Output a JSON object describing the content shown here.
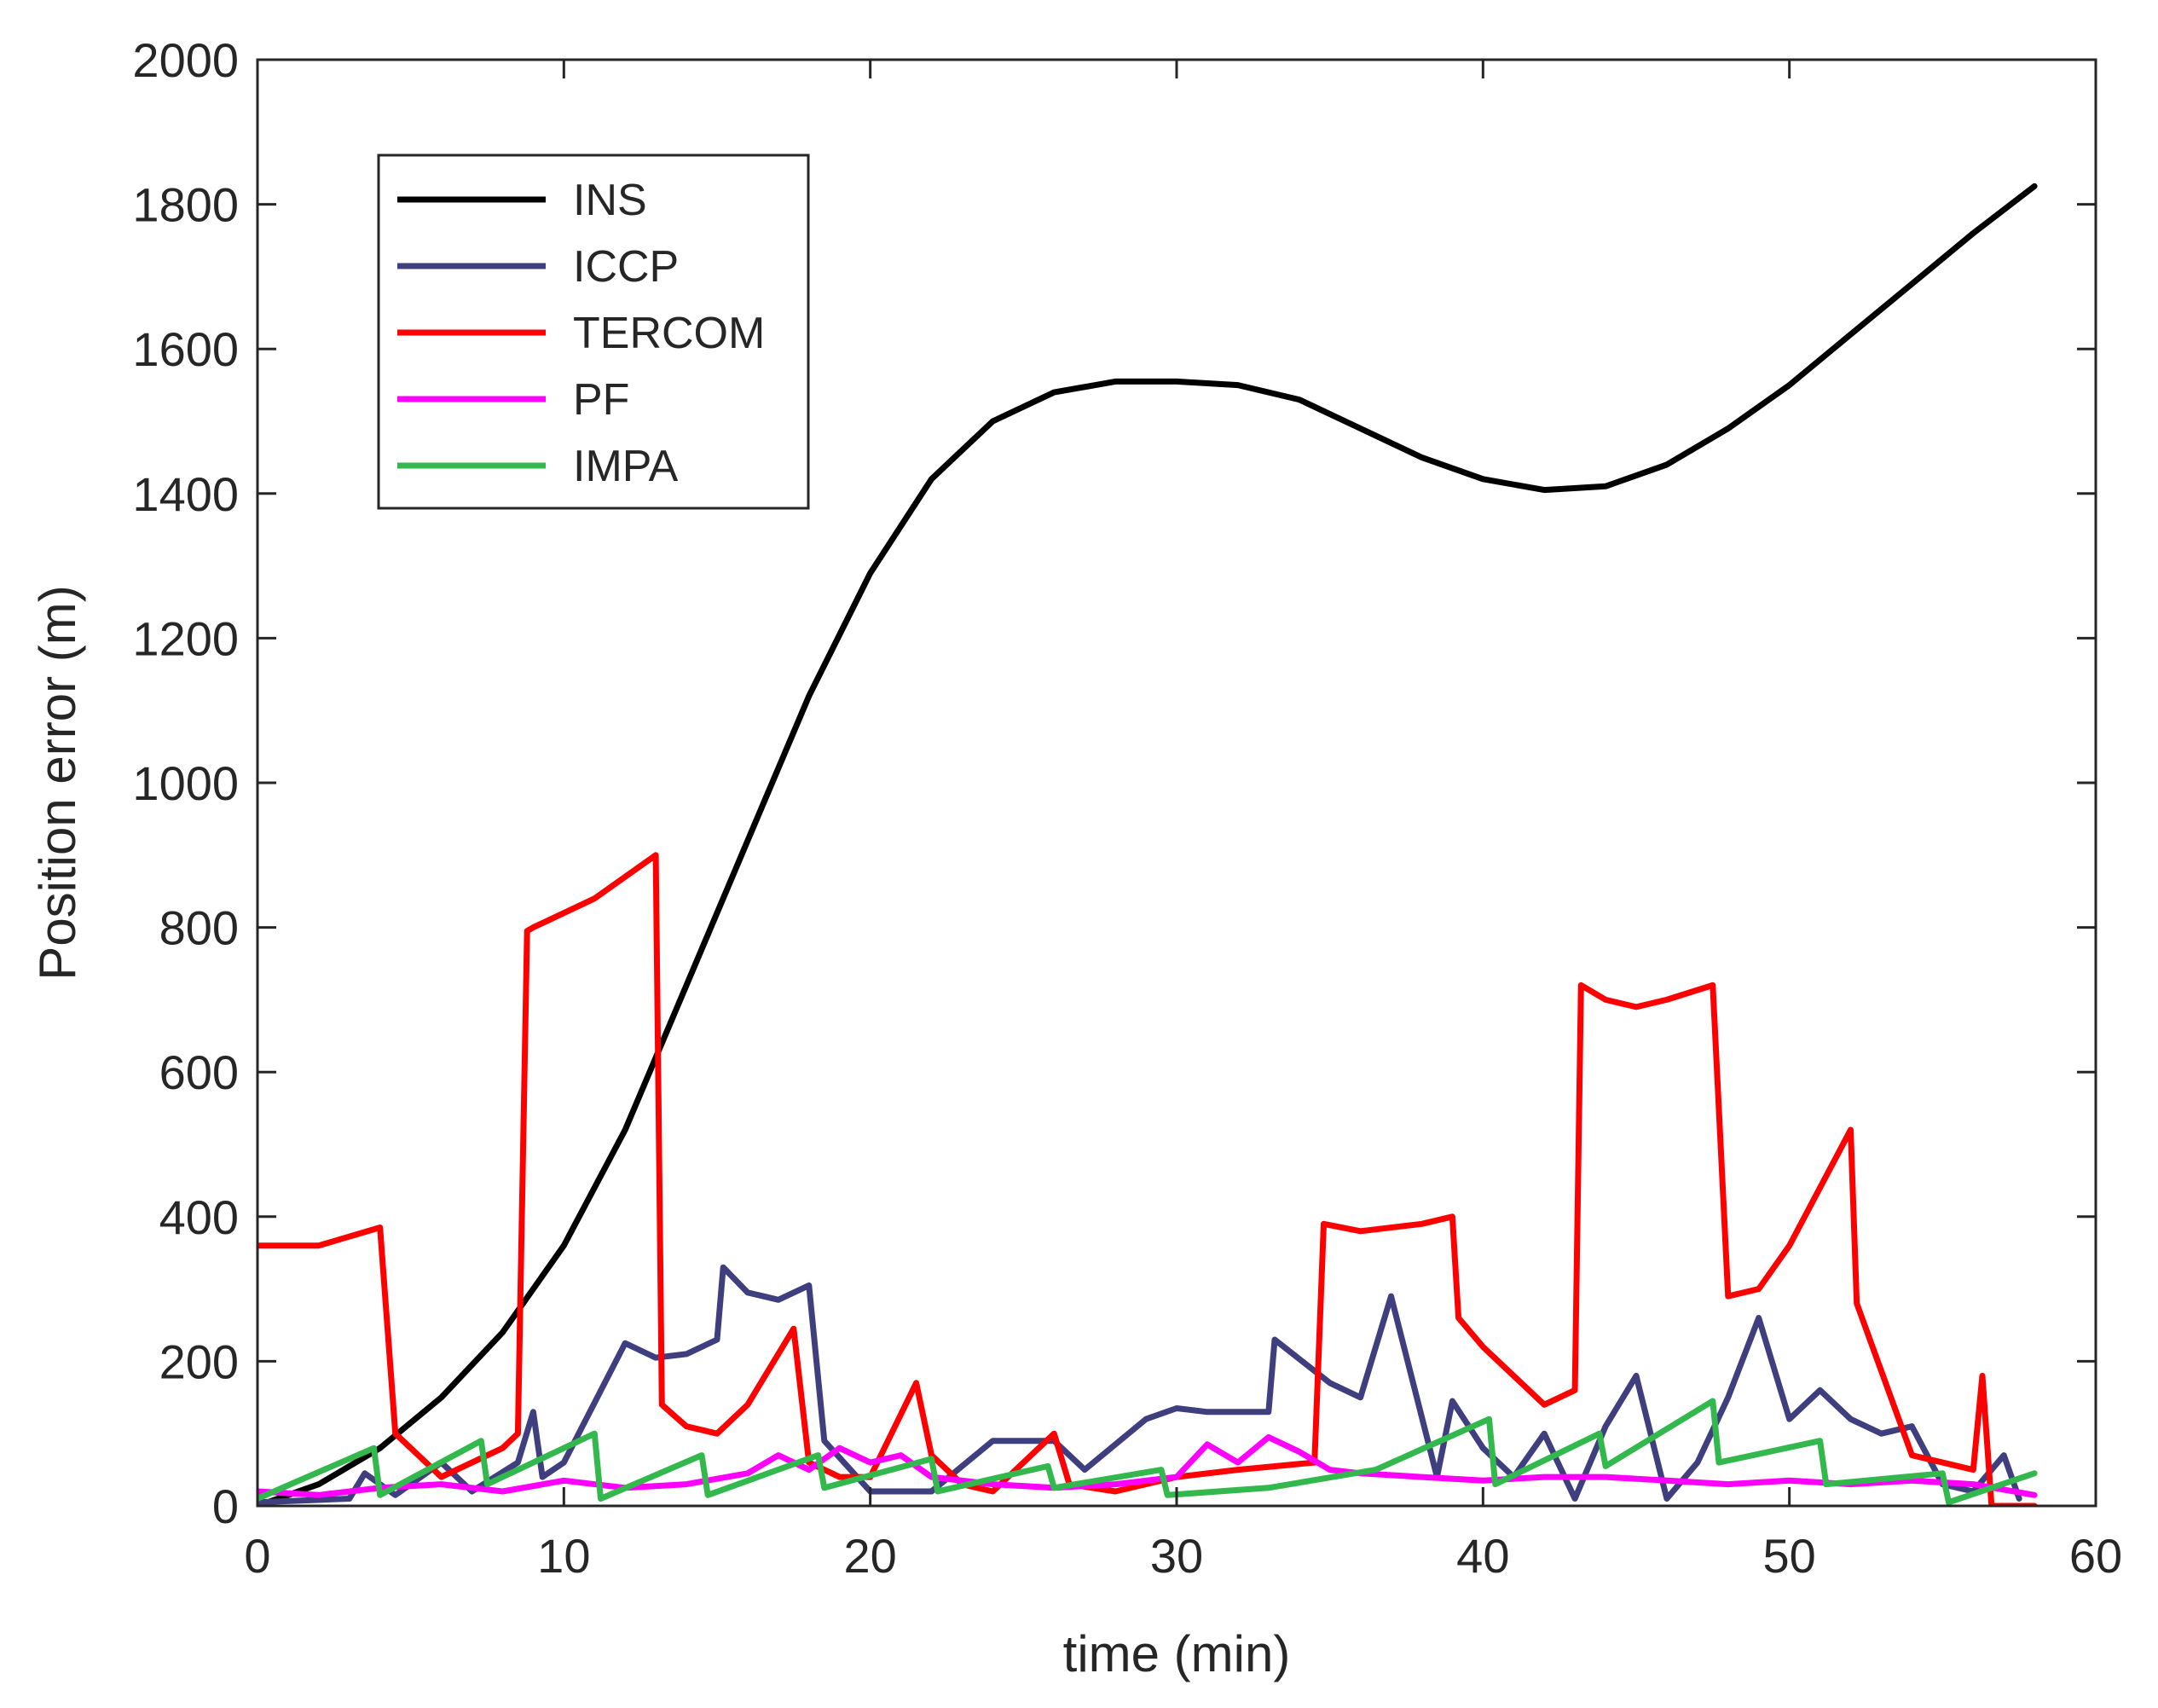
{
  "chart_data": {
    "type": "line",
    "title": "",
    "xlabel": "time (min)",
    "ylabel": "Position error (m)",
    "xlim": [
      0,
      60
    ],
    "ylim": [
      0,
      2000
    ],
    "xticks": [
      0,
      10,
      20,
      30,
      40,
      50,
      60
    ],
    "yticks": [
      0,
      200,
      400,
      600,
      800,
      1000,
      1200,
      1400,
      1600,
      1800,
      2000
    ],
    "legend_position": "top-left",
    "series": [
      {
        "name": "INS",
        "color": "#000000",
        "x": [
          0,
          2,
          4,
          6,
          8,
          10,
          12,
          14,
          16,
          18,
          20,
          22,
          24,
          26,
          28,
          30,
          32,
          34,
          36,
          38,
          40,
          42,
          44,
          46,
          48,
          50,
          52,
          54,
          56,
          58
        ],
        "y": [
          0,
          30,
          80,
          150,
          240,
          360,
          520,
          720,
          920,
          1120,
          1290,
          1420,
          1500,
          1540,
          1555,
          1555,
          1550,
          1530,
          1490,
          1450,
          1420,
          1405,
          1410,
          1440,
          1490,
          1550,
          1620,
          1690,
          1760,
          1825
        ]
      },
      {
        "name": "ICCP",
        "color": "#3f3f7f",
        "x": [
          0,
          3,
          3.5,
          4.5,
          6,
          7,
          8.5,
          9,
          9.3,
          10,
          12,
          13,
          14,
          15,
          15.2,
          16,
          17,
          18,
          18.5,
          20,
          22,
          24,
          26,
          27,
          29,
          30,
          31,
          33,
          33.2,
          35,
          36,
          37,
          38.5,
          39,
          40,
          41,
          42,
          43,
          44,
          45,
          46,
          47,
          48,
          49,
          50,
          51,
          52,
          53,
          54,
          55,
          56,
          57,
          57.5
        ],
        "y": [
          5,
          10,
          45,
          15,
          60,
          20,
          60,
          130,
          40,
          60,
          225,
          205,
          210,
          230,
          330,
          295,
          285,
          305,
          90,
          20,
          20,
          90,
          90,
          50,
          120,
          135,
          130,
          130,
          230,
          170,
          150,
          290,
          40,
          145,
          80,
          40,
          100,
          10,
          110,
          180,
          10,
          60,
          150,
          260,
          120,
          160,
          120,
          100,
          110,
          30,
          20,
          70,
          10
        ]
      },
      {
        "name": "TERCOM",
        "color": "#ff0000",
        "x": [
          0,
          2,
          4,
          4.5,
          6,
          8,
          8.5,
          8.8,
          9,
          11,
          13,
          13.2,
          14,
          15,
          16,
          17.5,
          18,
          19,
          20,
          21.5,
          22,
          23,
          24,
          26,
          26.5,
          28,
          30,
          32,
          34.5,
          34.8,
          36,
          38,
          39,
          39.2,
          40,
          41,
          42,
          43,
          43.2,
          44,
          45,
          46,
          47.5,
          48,
          49,
          50,
          52,
          52.2,
          54,
          56,
          56.3,
          56.6,
          58
        ],
        "y": [
          360,
          360,
          385,
          100,
          40,
          80,
          100,
          795,
          800,
          840,
          900,
          140,
          110,
          100,
          140,
          245,
          60,
          40,
          40,
          170,
          70,
          30,
          20,
          100,
          30,
          20,
          40,
          50,
          60,
          390,
          380,
          390,
          400,
          260,
          220,
          180,
          140,
          160,
          720,
          700,
          690,
          700,
          720,
          290,
          300,
          360,
          520,
          280,
          70,
          50,
          180,
          0,
          0
        ]
      },
      {
        "name": "PF",
        "color": "#ff00ff",
        "x": [
          0,
          2,
          4,
          6,
          8,
          10,
          12,
          14,
          16,
          17,
          18,
          19,
          20,
          21,
          22,
          24,
          26,
          28,
          30,
          31,
          32,
          33,
          34,
          35,
          36,
          38,
          40,
          42,
          44,
          46,
          48,
          50,
          52,
          54,
          56,
          58
        ],
        "y": [
          20,
          15,
          25,
          30,
          20,
          35,
          25,
          30,
          45,
          70,
          50,
          80,
          60,
          70,
          40,
          30,
          25,
          30,
          40,
          85,
          60,
          95,
          75,
          50,
          45,
          40,
          35,
          40,
          40,
          35,
          30,
          35,
          30,
          35,
          30,
          15
        ]
      },
      {
        "name": "IMPA",
        "color": "#33b84d",
        "x": [
          0,
          3.8,
          4.0,
          7.3,
          7.5,
          11.0,
          11.2,
          14.5,
          14.7,
          18.3,
          18.5,
          22.0,
          22.2,
          25.8,
          26.0,
          29.5,
          29.7,
          33.0,
          36.5,
          40.2,
          40.4,
          43.8,
          44.0,
          47.5,
          47.7,
          51.0,
          51.2,
          55.0,
          55.2,
          58
        ],
        "y": [
          10,
          80,
          15,
          90,
          30,
          100,
          10,
          70,
          15,
          70,
          25,
          65,
          20,
          55,
          25,
          50,
          15,
          25,
          50,
          120,
          30,
          100,
          55,
          145,
          60,
          90,
          30,
          45,
          5,
          45
        ]
      }
    ]
  }
}
